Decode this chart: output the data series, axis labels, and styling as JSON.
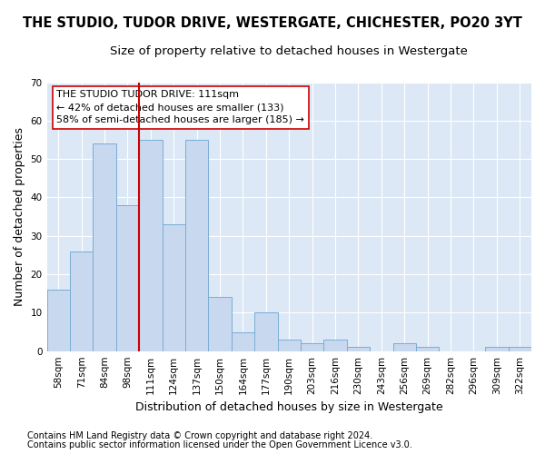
{
  "title": "THE STUDIO, TUDOR DRIVE, WESTERGATE, CHICHESTER, PO20 3YT",
  "subtitle": "Size of property relative to detached houses in Westergate",
  "xlabel": "Distribution of detached houses by size in Westergate",
  "ylabel": "Number of detached properties",
  "categories": [
    "58sqm",
    "71sqm",
    "84sqm",
    "98sqm",
    "111sqm",
    "124sqm",
    "137sqm",
    "150sqm",
    "164sqm",
    "177sqm",
    "190sqm",
    "203sqm",
    "216sqm",
    "230sqm",
    "243sqm",
    "256sqm",
    "269sqm",
    "282sqm",
    "296sqm",
    "309sqm",
    "322sqm"
  ],
  "values": [
    16,
    26,
    54,
    38,
    55,
    33,
    55,
    14,
    5,
    10,
    3,
    2,
    3,
    1,
    0,
    2,
    1,
    0,
    0,
    1,
    1
  ],
  "bar_color": "#c8d8ee",
  "bar_edgecolor": "#7aadd4",
  "vline_color": "#cc0000",
  "ylim": [
    0,
    70
  ],
  "yticks": [
    0,
    10,
    20,
    30,
    40,
    50,
    60,
    70
  ],
  "annotation_text": "THE STUDIO TUDOR DRIVE: 111sqm\n← 42% of detached houses are smaller (133)\n58% of semi-detached houses are larger (185) →",
  "annotation_box_color": "#ffffff",
  "annotation_box_edgecolor": "#cc0000",
  "footnote1": "Contains HM Land Registry data © Crown copyright and database right 2024.",
  "footnote2": "Contains public sector information licensed under the Open Government Licence v3.0.",
  "plot_bg_color": "#dce8f5",
  "fig_bg_color": "#ffffff",
  "grid_color": "#ffffff",
  "title_fontsize": 10.5,
  "subtitle_fontsize": 9.5,
  "axis_label_fontsize": 9,
  "tick_fontsize": 7.5,
  "annotation_fontsize": 8,
  "footnote_fontsize": 7
}
